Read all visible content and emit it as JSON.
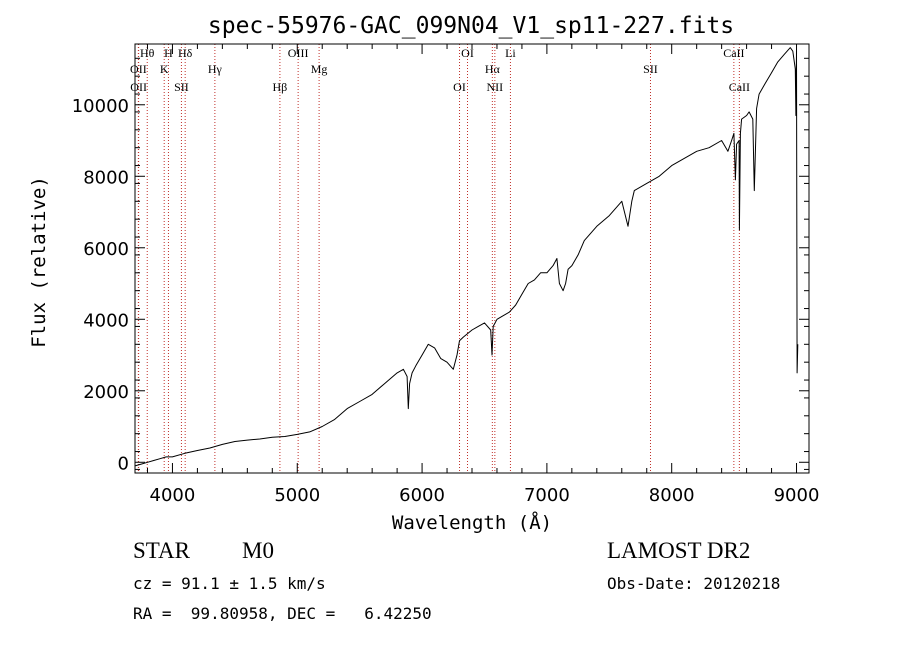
{
  "chart_data": {
    "type": "line",
    "title": "spec-55976-GAC_099N04_V1_sp11-227.fits",
    "xlabel": "Wavelength (Å)",
    "ylabel": "Flux (relative)",
    "xlim": [
      3700,
      9100
    ],
    "ylim": [
      -300,
      11700
    ],
    "xticks": [
      4000,
      5000,
      6000,
      7000,
      8000,
      9000
    ],
    "yticks": [
      0,
      2000,
      4000,
      6000,
      8000,
      10000
    ],
    "grid": false,
    "series": [
      {
        "x": [
          3700,
          3750,
          3800,
          3850,
          3900,
          3950,
          4000,
          4100,
          4200,
          4300,
          4400,
          4500,
          4600,
          4700,
          4800,
          4900,
          5000,
          5100,
          5200,
          5300,
          5400,
          5500,
          5600,
          5700,
          5800,
          5850,
          5880,
          5890,
          5900,
          5920,
          5950,
          6000,
          6050,
          6100,
          6150,
          6200,
          6250,
          6280,
          6300,
          6330,
          6400,
          6450,
          6500,
          6550,
          6560,
          6570,
          6600,
          6650,
          6700,
          6750,
          6800,
          6850,
          6900,
          6950,
          7000,
          7050,
          7080,
          7100,
          7130,
          7150,
          7170,
          7200,
          7250,
          7300,
          7400,
          7500,
          7600,
          7650,
          7680,
          7700,
          7800,
          7900,
          8000,
          8100,
          8200,
          8300,
          8400,
          8450,
          8480,
          8498,
          8510,
          8520,
          8540,
          8542,
          8550,
          8560,
          8600,
          8620,
          8650,
          8662,
          8680,
          8700,
          8750,
          8800,
          8850,
          8900,
          8950,
          8970,
          8990,
          8995,
          9000,
          9005,
          9010
        ],
        "y": [
          -100,
          -50,
          0,
          50,
          100,
          150,
          150,
          250,
          330,
          400,
          500,
          580,
          620,
          650,
          700,
          720,
          780,
          850,
          1000,
          1200,
          1500,
          1700,
          1900,
          2200,
          2500,
          2600,
          2400,
          1500,
          2200,
          2500,
          2700,
          3000,
          3300,
          3200,
          2900,
          2800,
          2600,
          3000,
          3400,
          3500,
          3700,
          3800,
          3900,
          3700,
          3000,
          3800,
          4000,
          4100,
          4200,
          4400,
          4700,
          5000,
          5100,
          5300,
          5300,
          5500,
          5700,
          5000,
          4800,
          5000,
          5400,
          5500,
          5800,
          6200,
          6600,
          6900,
          7300,
          6600,
          7300,
          7600,
          7800,
          8000,
          8300,
          8500,
          8700,
          8800,
          9000,
          8700,
          9000,
          9200,
          7900,
          8900,
          9000,
          6500,
          9200,
          9600,
          9700,
          9800,
          9600,
          7600,
          9900,
          10300,
          10600,
          10900,
          11200,
          11400,
          11600,
          11500,
          11000,
          9700,
          11500,
          2500,
          3300
        ]
      }
    ],
    "lines": [
      {
        "label": "Hθ",
        "x": 3798
      },
      {
        "label": "OII",
        "x": 3727
      },
      {
        "label": "OII",
        "x": 3729
      },
      {
        "label": "H",
        "x": 3968
      },
      {
        "label": "K",
        "x": 3934
      },
      {
        "label": "SII",
        "x": 4072
      },
      {
        "label": "Hδ",
        "x": 4102
      },
      {
        "label": "Hγ",
        "x": 4340
      },
      {
        "label": "Hβ",
        "x": 4861
      },
      {
        "label": "OIII",
        "x": 5007
      },
      {
        "label": "Mg",
        "x": 5175
      },
      {
        "label": "OI",
        "x": 6300
      },
      {
        "label": "OI",
        "x": 6364
      },
      {
        "label": "Hα",
        "x": 6563
      },
      {
        "label": "NII",
        "x": 6583
      },
      {
        "label": "Li",
        "x": 6708
      },
      {
        "label": "SII",
        "x": 7830
      },
      {
        "label": "CaII",
        "x": 8542
      },
      {
        "label": "CaII",
        "x": 8498
      }
    ]
  },
  "info": {
    "class": "STAR",
    "subclass": "M0",
    "survey": "LAMOST DR2",
    "cz": "cz = 91.1 ± 1.5 km/s",
    "obs_date": "Obs-Date: 20120218",
    "radec": "RA =  99.80958, DEC =   6.42250"
  }
}
